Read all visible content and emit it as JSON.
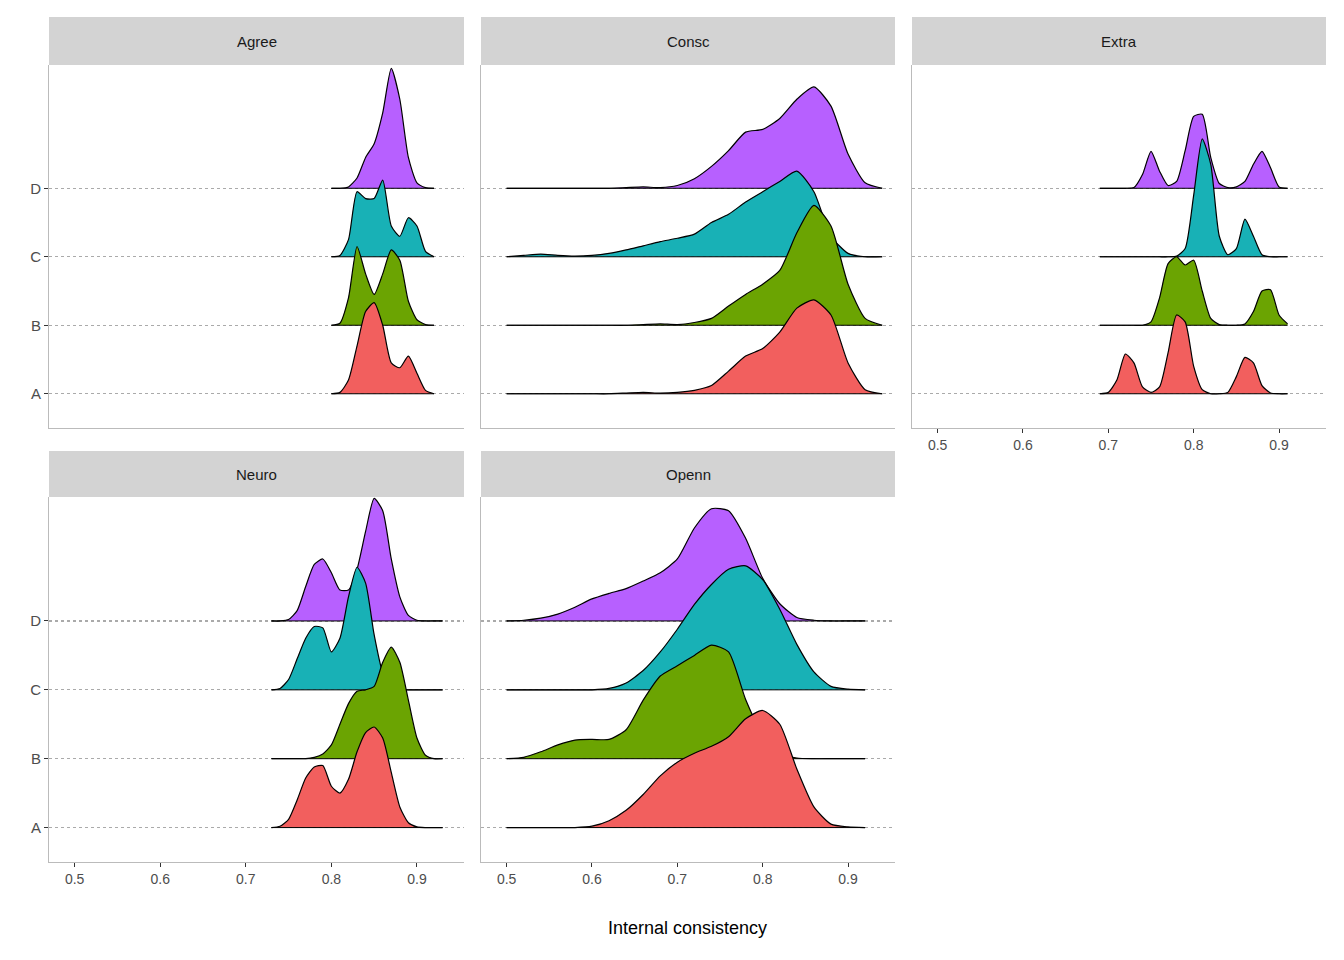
{
  "chart_data": {
    "type": "ridgeline",
    "xlabel": "Internal consistency",
    "categories": [
      "A",
      "B",
      "C",
      "D"
    ],
    "colors": [
      "#F25F5E",
      "#6BA402",
      "#18B1B6",
      "#B760FF"
    ],
    "xlim": [
      0.47,
      0.955
    ],
    "xticks": [
      0.5,
      0.6,
      0.7,
      0.8,
      0.9
    ],
    "ylim": [
      -0.5,
      4.8
    ],
    "grid": true,
    "panels": [
      {
        "title": "Agree",
        "x": [
          0.8,
          0.81,
          0.82,
          0.83,
          0.84,
          0.85,
          0.86,
          0.87,
          0.88,
          0.89,
          0.9,
          0.91,
          0.92
        ],
        "series": [
          {
            "name": "A",
            "values": [
              0,
              0.02,
              0.2,
              0.7,
              1.2,
              1.33,
              1.0,
              0.45,
              0.38,
              0.55,
              0.3,
              0.05,
              0
            ]
          },
          {
            "name": "B",
            "values": [
              0,
              0.03,
              0.4,
              1.15,
              0.75,
              0.45,
              0.75,
              1.1,
              0.95,
              0.35,
              0.08,
              0.01,
              0
            ]
          },
          {
            "name": "C",
            "values": [
              0,
              0.02,
              0.25,
              0.95,
              0.85,
              0.85,
              1.12,
              0.45,
              0.3,
              0.57,
              0.45,
              0.08,
              0
            ]
          },
          {
            "name": "D",
            "values": [
              0,
              0,
              0.02,
              0.15,
              0.45,
              0.65,
              1.1,
              1.75,
              1.3,
              0.45,
              0.08,
              0.01,
              0
            ]
          }
        ]
      },
      {
        "title": "Consc",
        "x": [
          0.5,
          0.52,
          0.54,
          0.56,
          0.58,
          0.6,
          0.62,
          0.64,
          0.66,
          0.68,
          0.7,
          0.72,
          0.74,
          0.76,
          0.78,
          0.8,
          0.82,
          0.84,
          0.86,
          0.88,
          0.9,
          0.92,
          0.94
        ],
        "series": [
          {
            "name": "A",
            "values": [
              0,
              0,
              0,
              0,
              0,
              0,
              0,
              0.01,
              0.02,
              0.01,
              0.02,
              0.05,
              0.12,
              0.33,
              0.55,
              0.66,
              0.9,
              1.25,
              1.37,
              1.15,
              0.45,
              0.06,
              0
            ]
          },
          {
            "name": "B",
            "values": [
              0,
              0,
              0,
              0,
              0,
              0,
              0,
              0,
              0.01,
              0.02,
              0.01,
              0.04,
              0.1,
              0.28,
              0.45,
              0.6,
              0.8,
              1.35,
              1.75,
              1.45,
              0.6,
              0.1,
              0
            ]
          },
          {
            "name": "C",
            "values": [
              0,
              0.02,
              0.04,
              0.02,
              0.01,
              0.02,
              0.05,
              0.1,
              0.16,
              0.22,
              0.27,
              0.33,
              0.5,
              0.62,
              0.8,
              0.95,
              1.1,
              1.25,
              0.95,
              0.3,
              0.05,
              0,
              0
            ]
          },
          {
            "name": "D",
            "values": [
              0,
              0,
              0,
              0,
              0,
              0,
              0,
              0.01,
              0.02,
              0.01,
              0.04,
              0.14,
              0.32,
              0.55,
              0.82,
              0.86,
              1.02,
              1.3,
              1.48,
              1.2,
              0.5,
              0.08,
              0
            ]
          }
        ]
      },
      {
        "title": "Extra",
        "x": [
          0.69,
          0.7,
          0.71,
          0.72,
          0.73,
          0.74,
          0.75,
          0.76,
          0.77,
          0.78,
          0.79,
          0.8,
          0.81,
          0.82,
          0.83,
          0.84,
          0.85,
          0.86,
          0.87,
          0.88,
          0.89,
          0.9,
          0.91
        ],
        "series": [
          {
            "name": "A",
            "values": [
              0,
              0.02,
              0.2,
              0.58,
              0.45,
              0.1,
              0.02,
              0.1,
              0.6,
              1.15,
              1.05,
              0.4,
              0.06,
              0,
              0,
              0.02,
              0.25,
              0.53,
              0.45,
              0.12,
              0.01,
              0,
              0
            ]
          },
          {
            "name": "B",
            "values": [
              0,
              0,
              0,
              0,
              0,
              0,
              0.05,
              0.4,
              0.9,
              1.0,
              0.88,
              0.95,
              0.5,
              0.1,
              0.01,
              0,
              0,
              0.02,
              0.2,
              0.5,
              0.52,
              0.15,
              0.02
            ]
          },
          {
            "name": "C",
            "values": [
              0,
              0,
              0,
              0,
              0,
              0,
              0,
              0,
              0,
              0.01,
              0.12,
              0.9,
              1.72,
              1.35,
              0.3,
              0.03,
              0.12,
              0.55,
              0.3,
              0.03,
              0,
              0,
              0
            ]
          },
          {
            "name": "D",
            "values": [
              0,
              0,
              0,
              0,
              0.01,
              0.2,
              0.54,
              0.25,
              0.04,
              0.1,
              0.55,
              1.05,
              1.08,
              0.45,
              0.07,
              0.01,
              0.02,
              0.1,
              0.35,
              0.54,
              0.3,
              0.02,
              0
            ]
          }
        ]
      },
      {
        "title": "Neuro",
        "x": [
          0.73,
          0.74,
          0.75,
          0.76,
          0.77,
          0.78,
          0.79,
          0.8,
          0.81,
          0.82,
          0.83,
          0.84,
          0.85,
          0.86,
          0.87,
          0.88,
          0.89,
          0.9,
          0.91,
          0.92,
          0.93
        ],
        "series": [
          {
            "name": "A",
            "values": [
              0,
              0.02,
              0.12,
              0.4,
              0.72,
              0.88,
              0.9,
              0.6,
              0.5,
              0.7,
              1.1,
              1.38,
              1.46,
              1.3,
              0.8,
              0.3,
              0.07,
              0.01,
              0,
              0,
              0
            ]
          },
          {
            "name": "B",
            "values": [
              0,
              0,
              0,
              0,
              0,
              0.02,
              0.07,
              0.2,
              0.5,
              0.8,
              0.98,
              1.0,
              1.05,
              1.4,
              1.62,
              1.4,
              0.85,
              0.3,
              0.05,
              0,
              0
            ]
          },
          {
            "name": "C",
            "values": [
              0,
              0.02,
              0.15,
              0.45,
              0.75,
              0.92,
              0.9,
              0.55,
              0.75,
              1.35,
              1.78,
              1.55,
              0.8,
              0.25,
              0.05,
              0.01,
              0,
              0,
              0,
              0,
              0
            ]
          },
          {
            "name": "D",
            "values": [
              0,
              0,
              0.02,
              0.15,
              0.5,
              0.82,
              0.9,
              0.7,
              0.45,
              0.45,
              0.75,
              1.3,
              1.78,
              1.6,
              0.9,
              0.35,
              0.08,
              0.01,
              0,
              0,
              0
            ]
          }
        ]
      },
      {
        "title": "Openn",
        "x": [
          0.5,
          0.52,
          0.54,
          0.56,
          0.58,
          0.6,
          0.62,
          0.64,
          0.66,
          0.68,
          0.7,
          0.72,
          0.74,
          0.76,
          0.78,
          0.8,
          0.82,
          0.84,
          0.86,
          0.88,
          0.9,
          0.92
        ],
        "series": [
          {
            "name": "A",
            "values": [
              0,
              0,
              0,
              0,
              0,
              0.02,
              0.1,
              0.25,
              0.48,
              0.75,
              0.95,
              1.08,
              1.18,
              1.32,
              1.58,
              1.7,
              1.5,
              0.85,
              0.3,
              0.05,
              0.01,
              0
            ]
          },
          {
            "name": "B",
            "values": [
              0,
              0.02,
              0.1,
              0.2,
              0.27,
              0.28,
              0.28,
              0.42,
              0.85,
              1.2,
              1.35,
              1.5,
              1.65,
              1.55,
              0.86,
              0.35,
              0.08,
              0.01,
              0,
              0,
              0,
              0
            ]
          },
          {
            "name": "C",
            "values": [
              0,
              0,
              0,
              0,
              0,
              0,
              0.02,
              0.1,
              0.28,
              0.55,
              0.88,
              1.24,
              1.53,
              1.75,
              1.8,
              1.6,
              1.17,
              0.66,
              0.26,
              0.05,
              0.01,
              0
            ]
          },
          {
            "name": "D",
            "values": [
              0,
              0.01,
              0.04,
              0.1,
              0.2,
              0.32,
              0.4,
              0.47,
              0.58,
              0.7,
              0.9,
              1.35,
              1.63,
              1.6,
              1.2,
              0.62,
              0.25,
              0.05,
              0.01,
              0,
              0,
              0
            ]
          }
        ]
      }
    ]
  }
}
